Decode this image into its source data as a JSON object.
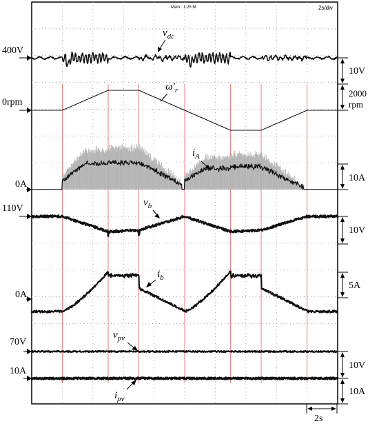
{
  "header": {
    "main": "Main : 1.25 M",
    "timebase": "2s/div"
  },
  "chart_data": {
    "type": "line",
    "time_div_s": 2,
    "divisions": 10,
    "channels": [
      {
        "id": "vdc",
        "label_main": "v",
        "label_sub": "dc",
        "ref": "400V",
        "scale": "10V"
      },
      {
        "id": "wr",
        "label_main": "ω′",
        "label_sub": "r",
        "ref": "0rpm",
        "scale": "2000 rpm"
      },
      {
        "id": "iA",
        "label_main": "i",
        "label_sub": "A",
        "ref": "0A",
        "scale": "10A"
      },
      {
        "id": "vb",
        "label_main": "v",
        "label_sub": "b",
        "ref": "110V",
        "scale": "10V"
      },
      {
        "id": "ib",
        "label_main": "i",
        "label_sub": "b",
        "ref": "0A",
        "scale": "5A"
      },
      {
        "id": "vpv",
        "label_main": "v",
        "label_sub": "pv",
        "ref": "70V",
        "scale": "10V"
      },
      {
        "id": "ipv",
        "label_main": "i",
        "label_sub": "pv",
        "ref": "10A",
        "scale": "10A"
      }
    ],
    "speed_profile": {
      "time_s": [
        0,
        2,
        5,
        7,
        10,
        13,
        15,
        18,
        20
      ],
      "speed_rpm": [
        0,
        0,
        2000,
        2000,
        0,
        -2000,
        -2000,
        0,
        0
      ]
    },
    "time_marker": "2s"
  }
}
